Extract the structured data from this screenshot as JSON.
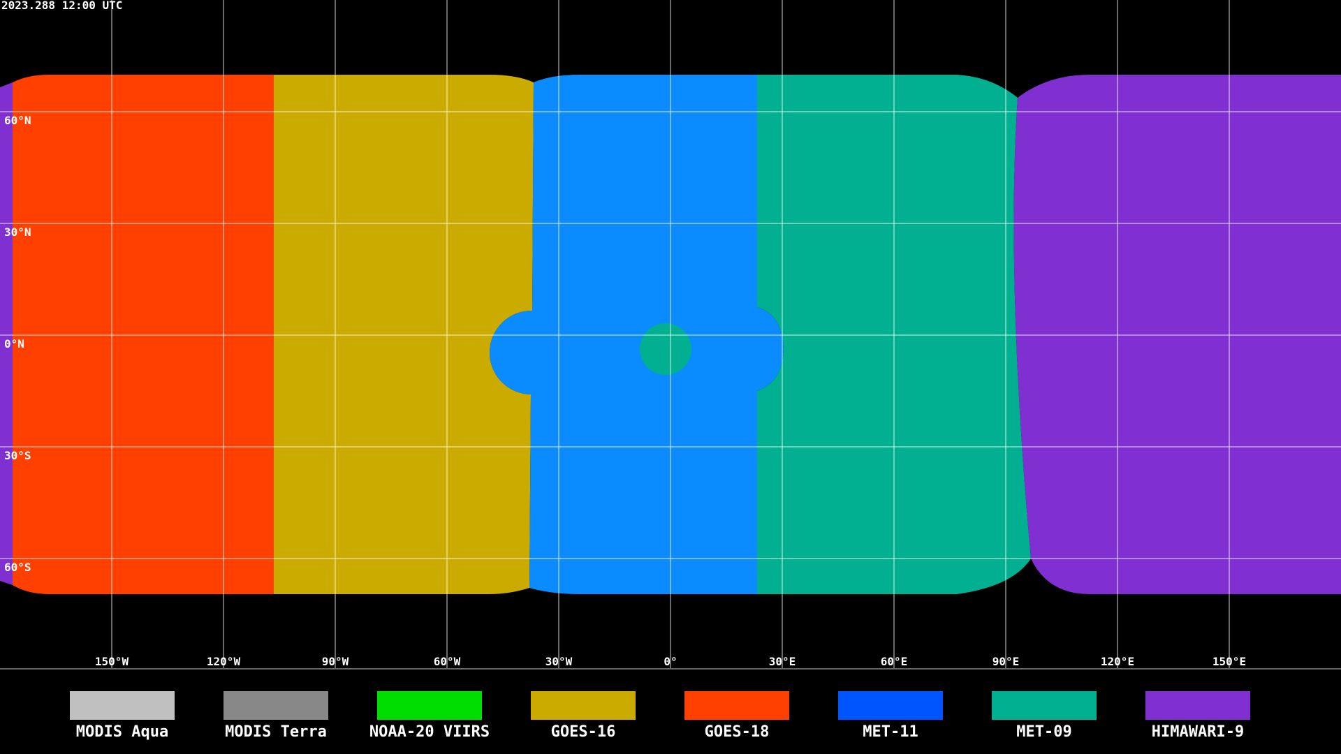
{
  "header": {
    "timestamp": "2023.288 12:00 UTC"
  },
  "latitude_labels": [
    "60°N",
    "30°N",
    "0°N",
    "30°S",
    "60°S"
  ],
  "longitude_labels": [
    "150°W",
    "120°W",
    "90°W",
    "60°W",
    "30°W",
    "0°",
    "30°E",
    "60°E",
    "90°E",
    "120°E",
    "150°E"
  ],
  "legend": [
    {
      "name": "MODIS Aqua",
      "color": "#c0c0c0"
    },
    {
      "name": "MODIS Terra",
      "color": "#888888"
    },
    {
      "name": "NOAA-20 VIIRS",
      "color": "#00dd00"
    },
    {
      "name": "GOES-16",
      "color": "#ccab00"
    },
    {
      "name": "GOES-18",
      "color": "#ff4000"
    },
    {
      "name": "MET-11",
      "color": "#0055ff"
    },
    {
      "name": "MET-09",
      "color": "#00b090"
    },
    {
      "name": "HIMAWARI-9",
      "color": "#8030d0"
    }
  ]
}
